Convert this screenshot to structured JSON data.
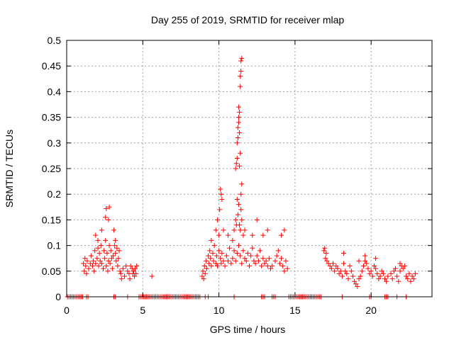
{
  "chart_data": {
    "type": "scatter",
    "title": "Day 255 of 2019, SRMTID for receiver mlap",
    "xlabel": "GPS time / hours",
    "ylabel": "SRMTID / TECUs",
    "xlim": [
      0,
      24
    ],
    "ylim": [
      0,
      0.5
    ],
    "xticks": [
      0,
      5,
      10,
      15,
      20
    ],
    "xtick_labels": [
      "0",
      "5",
      "10",
      "15",
      "20"
    ],
    "yticks": [
      0,
      0.05,
      0.1,
      0.15,
      0.2,
      0.25,
      0.3,
      0.35,
      0.4,
      0.45,
      0.5
    ],
    "ytick_labels": [
      "0",
      "0.05",
      "0.1",
      "0.15",
      "0.2",
      "0.25",
      "0.3",
      "0.35",
      "0.4",
      "0.45",
      "0.5"
    ],
    "grid": true,
    "marker": "+",
    "series": [
      {
        "name": "SRMTID",
        "color": "#ff0000",
        "x": [
          0.05,
          0.15,
          0.25,
          0.35,
          0.45,
          0.55,
          0.65,
          0.75,
          0.85,
          0.95,
          1.05,
          1.3,
          1.4,
          3.1,
          3.2,
          4.0,
          4.75,
          4.85,
          4.95,
          5.05,
          5.15,
          5.25,
          5.35,
          5.45,
          5.55,
          5.65,
          5.75,
          5.85,
          5.95,
          6.05,
          6.15,
          6.25,
          6.35,
          6.45,
          6.55,
          6.65,
          6.75,
          6.85,
          6.95,
          7.05,
          7.15,
          7.25,
          7.35,
          7.45,
          7.55,
          7.65,
          7.75,
          7.85,
          7.95,
          8.05,
          8.15,
          8.25,
          8.35,
          8.45,
          8.55,
          8.65,
          8.75,
          9.1,
          9.3,
          11.0,
          12.8,
          12.9,
          13.0,
          13.5,
          13.6,
          13.7,
          14.6,
          14.7,
          14.8,
          14.9,
          15.0,
          15.1,
          15.2,
          15.3,
          15.4,
          15.5,
          15.6,
          15.7,
          15.8,
          15.9,
          16.0,
          16.1,
          16.2,
          16.3,
          16.4,
          16.5,
          16.6,
          16.7,
          18.1,
          19.9,
          20.0,
          20.9,
          21.0,
          21.1,
          21.7,
          22.3,
          1.1,
          1.15,
          1.2,
          1.25,
          1.3,
          1.35,
          1.45,
          1.55,
          1.6,
          1.7,
          1.75,
          1.8,
          1.85,
          1.9,
          2.0,
          2.05,
          2.1,
          2.15,
          2.2,
          2.25,
          2.3,
          2.4,
          2.45,
          2.5,
          2.55,
          2.6,
          2.65,
          2.7,
          2.75,
          2.8,
          2.85,
          2.9,
          2.95,
          3.0,
          3.05,
          3.15,
          3.2,
          3.25,
          3.3,
          3.35,
          3.4,
          3.5,
          3.55,
          3.6,
          3.7,
          3.8,
          3.9,
          4.0,
          4.1,
          4.15,
          4.2,
          4.3,
          4.35,
          4.4,
          4.45,
          4.5,
          4.55,
          4.6,
          5.6,
          1.9,
          2.05,
          2.3,
          2.55,
          2.6,
          2.75,
          2.8,
          3.1,
          3.2,
          3.45,
          8.9,
          8.95,
          9.0,
          9.05,
          9.1,
          9.15,
          9.2,
          9.3,
          9.35,
          9.4,
          9.45,
          9.5,
          9.6,
          9.65,
          9.7,
          9.8,
          9.85,
          9.9,
          10.0,
          10.1,
          10.15,
          10.2,
          10.3,
          10.4,
          10.5,
          10.6,
          10.7,
          10.8,
          10.9,
          11.0,
          11.1,
          11.2,
          11.3,
          11.4,
          11.5,
          11.6,
          11.7,
          11.8,
          11.9,
          12.0,
          12.1,
          12.2,
          12.3,
          12.4,
          12.5,
          12.6,
          12.7,
          12.8,
          12.9,
          13.0,
          13.1,
          13.2,
          13.3,
          13.4,
          13.5,
          13.7,
          13.8,
          13.9,
          14.0,
          14.1,
          14.2,
          14.3,
          14.4,
          14.5,
          9.5,
          9.8,
          9.9,
          10.0,
          10.05,
          10.1,
          10.15,
          10.2,
          10.3,
          10.6,
          10.9,
          11.0,
          11.1,
          11.15,
          11.2,
          11.25,
          11.3,
          11.35,
          11.4,
          11.45,
          11.5,
          11.6,
          11.7,
          12.2,
          12.5,
          12.9,
          13.2,
          14.1,
          14.3,
          11.1,
          11.15,
          11.2,
          11.2,
          11.25,
          11.25,
          11.3,
          11.3,
          11.3,
          11.35,
          11.35,
          11.4,
          11.4,
          11.45,
          11.45,
          11.5,
          11.5,
          11.35,
          11.4,
          11.45,
          16.9,
          17.0,
          17.1,
          17.2,
          17.3,
          17.4,
          17.5,
          17.6,
          17.7,
          17.8,
          17.9,
          18.0,
          18.1,
          18.2,
          18.3,
          18.4,
          18.5,
          18.6,
          18.7,
          18.8,
          18.9,
          19.0,
          19.1,
          19.2,
          19.3,
          19.4,
          19.5,
          19.6,
          19.7,
          19.8,
          19.9,
          20.0,
          20.1,
          20.2,
          20.3,
          20.4,
          20.5,
          20.6,
          20.7,
          20.8,
          20.9,
          21.0,
          21.1,
          21.3,
          21.4,
          21.5,
          21.6,
          21.7,
          21.8,
          21.9,
          22.0,
          22.1,
          22.3,
          22.4,
          22.5,
          22.6,
          22.7,
          22.8,
          22.9,
          16.95,
          17.05,
          18.2,
          19.2,
          19.6,
          20.3,
          21.9,
          22.2
        ],
        "y": [
          0,
          0,
          0,
          0,
          0,
          0,
          0,
          0,
          0,
          0,
          0,
          0,
          0,
          0,
          0,
          0,
          0,
          0,
          0,
          0,
          0,
          0,
          0,
          0,
          0,
          0,
          0,
          0,
          0,
          0,
          0,
          0,
          0,
          0,
          0,
          0,
          0,
          0,
          0,
          0,
          0,
          0,
          0,
          0,
          0,
          0,
          0,
          0,
          0,
          0,
          0,
          0,
          0,
          0,
          0,
          0,
          0,
          0,
          0,
          0,
          0,
          0,
          0,
          0,
          0,
          0,
          0,
          0,
          0,
          0,
          0,
          0,
          0,
          0,
          0,
          0,
          0,
          0,
          0,
          0,
          0,
          0,
          0,
          0,
          0,
          0,
          0,
          0,
          0,
          0,
          0,
          0,
          0,
          0,
          0,
          0,
          0.065,
          0.05,
          0.075,
          0.06,
          0.045,
          0.07,
          0.055,
          0.065,
          0.08,
          0.06,
          0.07,
          0.05,
          0.09,
          0.065,
          0.075,
          0.095,
          0.06,
          0.085,
          0.07,
          0.1,
          0.065,
          0.055,
          0.09,
          0.075,
          0.11,
          0.06,
          0.085,
          0.05,
          0.07,
          0.1,
          0.065,
          0.09,
          0.075,
          0.055,
          0.08,
          0.1,
          0.085,
          0.07,
          0.095,
          0.06,
          0.075,
          0.05,
          0.045,
          0.035,
          0.055,
          0.04,
          0.06,
          0.05,
          0.045,
          0.035,
          0.06,
          0.055,
          0.045,
          0.05,
          0.04,
          0.055,
          0.045,
          0.06,
          0.04,
          0.12,
          0.11,
          0.13,
          0.155,
          0.172,
          0.15,
          0.175,
          0.13,
          0.11,
          0.09,
          0.04,
          0.05,
          0.035,
          0.06,
          0.045,
          0.07,
          0.055,
          0.08,
          0.065,
          0.09,
          0.075,
          0.06,
          0.085,
          0.07,
          0.1,
          0.065,
          0.08,
          0.06,
          0.09,
          0.075,
          0.065,
          0.085,
          0.07,
          0.06,
          0.08,
          0.07,
          0.095,
          0.065,
          0.075,
          0.09,
          0.07,
          0.085,
          0.1,
          0.08,
          0.065,
          0.09,
          0.075,
          0.07,
          0.085,
          0.06,
          0.08,
          0.095,
          0.07,
          0.065,
          0.08,
          0.07,
          0.09,
          0.06,
          0.075,
          0.065,
          0.07,
          0.06,
          0.075,
          0.055,
          0.06,
          0.07,
          0.08,
          0.09,
          0.065,
          0.075,
          0.06,
          0.05,
          0.07,
          0.055,
          0.11,
          0.13,
          0.15,
          0.12,
          0.17,
          0.21,
          0.2,
          0.19,
          0.13,
          0.12,
          0.11,
          0.13,
          0.15,
          0.14,
          0.19,
          0.16,
          0.18,
          0.14,
          0.13,
          0.17,
          0.15,
          0.12,
          0.13,
          0.12,
          0.15,
          0.12,
          0.13,
          0.12,
          0.13,
          0.25,
          0.26,
          0.27,
          0.3,
          0.31,
          0.33,
          0.34,
          0.35,
          0.37,
          0.255,
          0.36,
          0.41,
          0.43,
          0.44,
          0.46,
          0.465,
          0.22,
          0.32,
          0.28,
          0.2,
          0.09,
          0.075,
          0.07,
          0.065,
          0.06,
          0.055,
          0.065,
          0.05,
          0.06,
          0.055,
          0.045,
          0.05,
          0.04,
          0.065,
          0.05,
          0.045,
          0.035,
          0.06,
          0.05,
          0.04,
          0.03,
          0.025,
          0.02,
          0.035,
          0.04,
          0.05,
          0.06,
          0.07,
          0.065,
          0.055,
          0.045,
          0.05,
          0.04,
          0.06,
          0.055,
          0.045,
          0.035,
          0.04,
          0.05,
          0.045,
          0.035,
          0.03,
          0.04,
          0.045,
          0.035,
          0.05,
          0.055,
          0.04,
          0.03,
          0.05,
          0.06,
          0.055,
          0.04,
          0.035,
          0.045,
          0.03,
          0.04,
          0.035,
          0.045,
          0.095,
          0.085,
          0.085,
          0.07,
          0.08,
          0.075,
          0.065,
          0.06
        ]
      }
    ]
  }
}
